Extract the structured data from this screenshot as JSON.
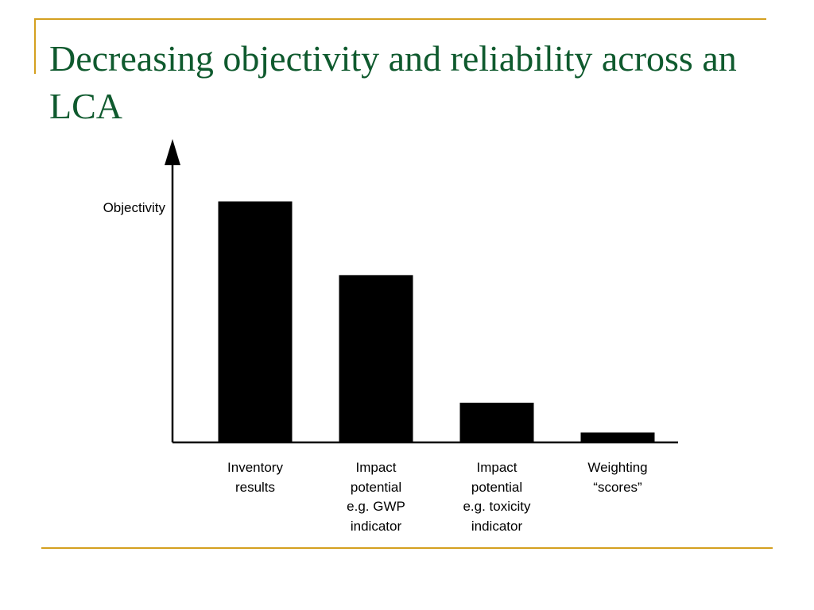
{
  "slide": {
    "title": "Decreasing objectivity and reliability across an LCA",
    "accent_color": "#d4a020",
    "title_color": "#0f5a2e"
  },
  "chart_data": {
    "type": "bar",
    "title": "",
    "xlabel": "",
    "ylabel": "Objectivity",
    "ylim": [
      0,
      100
    ],
    "grid": false,
    "legend": "none",
    "bar_color": "#000000",
    "categories": [
      [
        "Inventory",
        "results"
      ],
      [
        "Impact",
        "potential",
        "e.g. GWP",
        "indicator"
      ],
      [
        "Impact",
        "potential",
        "e.g. toxicity",
        "indicator"
      ],
      [
        "Weighting",
        "“scores”"
      ]
    ],
    "values": [
      85,
      59,
      14,
      3.5
    ]
  }
}
